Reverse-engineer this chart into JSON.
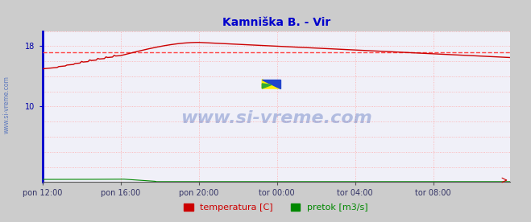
{
  "title": "Kamniška B. - Vir",
  "title_color": "#0000cc",
  "bg_color": "#cccccc",
  "plot_bg_color": "#f0f0f8",
  "grid_color": "#ffaaaa",
  "ylim": [
    0,
    20
  ],
  "xlim": [
    0,
    287
  ],
  "avg_line_y": 17.2,
  "avg_line_color": "#ff4444",
  "xtick_labels": [
    "pon 12:00",
    "pon 16:00",
    "pon 20:00",
    "tor 00:00",
    "tor 04:00",
    "tor 08:00"
  ],
  "xtick_positions": [
    0,
    48,
    96,
    144,
    192,
    240
  ],
  "total_points": 288,
  "temp_color": "#cc0000",
  "flow_color": "#008800",
  "watermark": "www.si-vreme.com",
  "watermark_color": "#2244aa",
  "legend_temp": "temperatura [C]",
  "legend_flow": "pretok [m3/s]",
  "legend_color_temp": "#cc0000",
  "legend_color_flow": "#008800",
  "left_axis_color": "#0000cc",
  "side_label": "www.si-vreme.com",
  "side_label_color": "#4466bb",
  "xlabel_color": "#333366",
  "ylabel_color": "#0000aa",
  "ytick_visible": [
    10,
    18
  ],
  "arrow_color": "#cc0000"
}
